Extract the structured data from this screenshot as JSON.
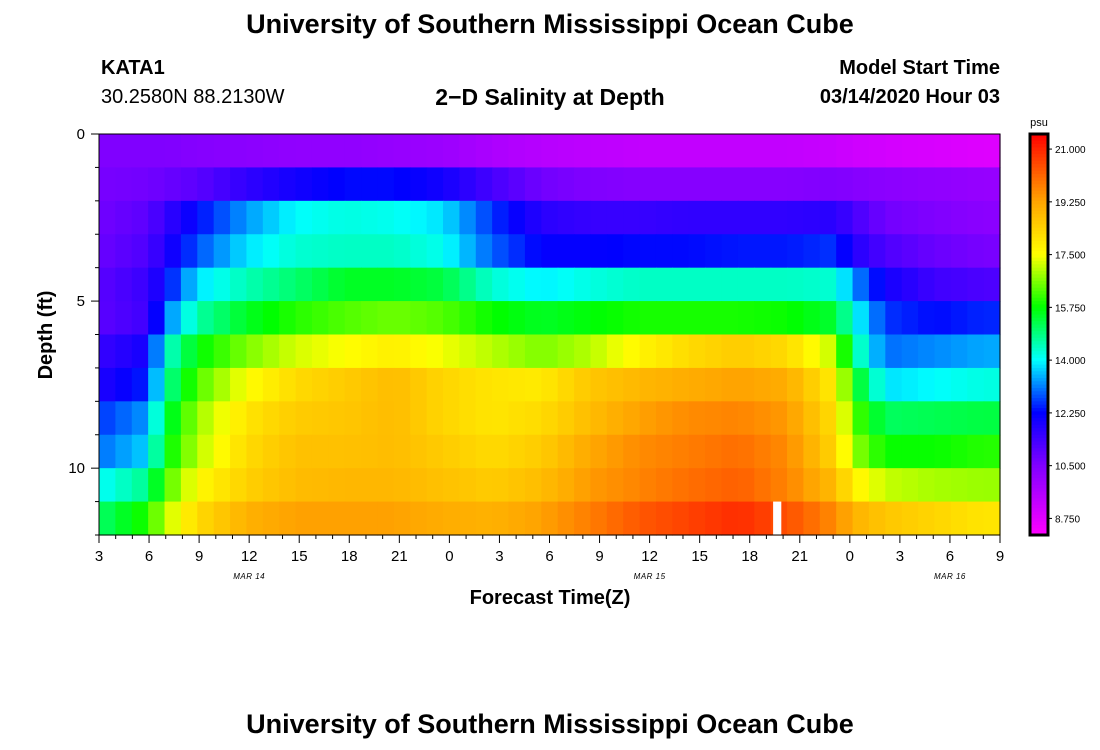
{
  "header": {
    "title": "University of Southern Mississippi Ocean Cube",
    "station_id": "KATA1",
    "station_coords": "30.2580N 88.2130W",
    "model_start_label": "Model Start Time",
    "model_start_value": "03/14/2020 Hour 03"
  },
  "footer": {
    "title": "University of Southern Mississippi Ocean Cube"
  },
  "colors": {
    "scale": [
      "#ff00ff",
      "#8000ff",
      "#0000ff",
      "#00ffff",
      "#00ff00",
      "#ffff00",
      "#ffa500",
      "#ff0000"
    ]
  },
  "chart_data": {
    "type": "heatmap",
    "title": "2−D Salinity at Depth",
    "xlabel": "Forecast Time(Z)",
    "ylabel": "Depth (ft)",
    "x_tick_labels": [
      "3",
      "6",
      "9",
      "12",
      "15",
      "18",
      "21",
      "0",
      "3",
      "6",
      "9",
      "12",
      "15",
      "18",
      "21",
      "0",
      "3",
      "6",
      "9"
    ],
    "date_labels": [
      "MAR 14",
      "MAR 15",
      "MAR 16"
    ],
    "y_ticks": [
      0,
      5,
      10
    ],
    "ylim": [
      0,
      12
    ],
    "colorbar": {
      "unit": "psu",
      "ticks": [
        "21.000",
        "19.250",
        "17.500",
        "15.750",
        "14.000",
        "12.250",
        "10.500",
        "8.750"
      ],
      "range": [
        8.2,
        21.5
      ]
    },
    "grid": false,
    "rows": 12,
    "columns": 55,
    "hours_per_column": 1,
    "depth_ft": [
      0.5,
      1.5,
      2.5,
      3.5,
      4.5,
      5.5,
      6.5,
      7.5,
      8.5,
      9.5,
      10.5,
      11.5
    ],
    "salinity": {
      "time_keyframes_hours_from_start": [
        0,
        3,
        4,
        6,
        9,
        12,
        15,
        18,
        21,
        24,
        27,
        30,
        33,
        36,
        39,
        42,
        45,
        46,
        48,
        51,
        54
      ],
      "values_by_depth": [
        [
          10.5,
          10.5,
          10.5,
          10.4,
          10.3,
          10.2,
          10.2,
          10.1,
          10.0,
          9.7,
          9.5,
          9.4,
          9.3,
          9.3,
          9.3,
          9.3,
          9.2,
          9.1,
          9.0,
          8.9,
          8.8
        ],
        [
          10.6,
          10.7,
          10.8,
          11.0,
          11.6,
          12.0,
          12.3,
          12.3,
          12.0,
          11.3,
          10.7,
          10.5,
          10.4,
          10.4,
          10.4,
          10.4,
          10.5,
          10.4,
          10.3,
          10.2,
          10.1
        ],
        [
          10.7,
          11.0,
          11.5,
          12.3,
          13.3,
          14.0,
          14.2,
          14.1,
          13.8,
          12.6,
          11.7,
          11.5,
          11.5,
          11.6,
          11.6,
          11.6,
          11.7,
          11.3,
          10.7,
          10.5,
          10.3
        ],
        [
          10.8,
          11.2,
          11.8,
          12.8,
          13.8,
          14.3,
          14.4,
          14.4,
          14.1,
          12.9,
          12.2,
          12.2,
          12.3,
          12.3,
          12.4,
          12.4,
          12.6,
          11.8,
          11.2,
          10.8,
          10.6
        ],
        [
          11.0,
          11.5,
          12.2,
          13.8,
          14.5,
          15.0,
          15.5,
          15.5,
          15.3,
          14.3,
          13.9,
          14.2,
          14.4,
          14.4,
          14.4,
          14.4,
          14.3,
          13.3,
          12.0,
          11.4,
          11.2
        ],
        [
          11.0,
          11.4,
          13.0,
          14.6,
          15.5,
          16.0,
          16.3,
          16.5,
          16.3,
          15.8,
          15.5,
          15.7,
          15.9,
          15.9,
          15.9,
          15.8,
          15.4,
          14.2,
          12.6,
          12.3,
          12.5
        ],
        [
          11.5,
          12.0,
          14.2,
          15.7,
          16.6,
          17.2,
          17.5,
          17.8,
          17.4,
          17.0,
          16.6,
          17.0,
          17.7,
          18.2,
          18.5,
          18.2,
          17.0,
          14.8,
          13.0,
          13.2,
          13.4
        ],
        [
          11.8,
          12.5,
          14.6,
          16.3,
          17.5,
          18.2,
          18.5,
          18.8,
          18.3,
          18.0,
          17.9,
          18.6,
          18.9,
          19.1,
          19.3,
          19.1,
          17.8,
          15.8,
          13.8,
          14.0,
          14.2
        ],
        [
          12.6,
          13.3,
          15.2,
          16.8,
          18.0,
          18.5,
          18.6,
          18.8,
          18.3,
          18.0,
          18.2,
          18.8,
          19.3,
          19.6,
          19.7,
          19.4,
          18.1,
          16.4,
          15.1,
          15.2,
          15.3
        ],
        [
          13.0,
          13.7,
          15.6,
          17.0,
          18.2,
          18.7,
          18.7,
          18.8,
          18.5,
          18.2,
          18.5,
          19.2,
          19.6,
          19.8,
          20.0,
          19.6,
          18.3,
          16.8,
          15.8,
          15.8,
          16.0
        ],
        [
          14.0,
          14.8,
          16.2,
          17.6,
          18.4,
          18.8,
          18.9,
          18.9,
          18.7,
          18.5,
          18.8,
          19.4,
          19.7,
          20.0,
          20.2,
          19.7,
          18.8,
          17.8,
          17.1,
          16.9,
          16.8
        ],
        [
          15.0,
          16.0,
          17.0,
          18.2,
          19.0,
          19.3,
          19.3,
          19.3,
          19.1,
          19.0,
          19.3,
          19.8,
          20.3,
          20.6,
          20.9,
          20.4,
          19.6,
          19.0,
          18.6,
          18.3,
          18.0
        ]
      ]
    },
    "missing_cell": {
      "hour_from_start": 41,
      "depth_row": 11
    }
  }
}
